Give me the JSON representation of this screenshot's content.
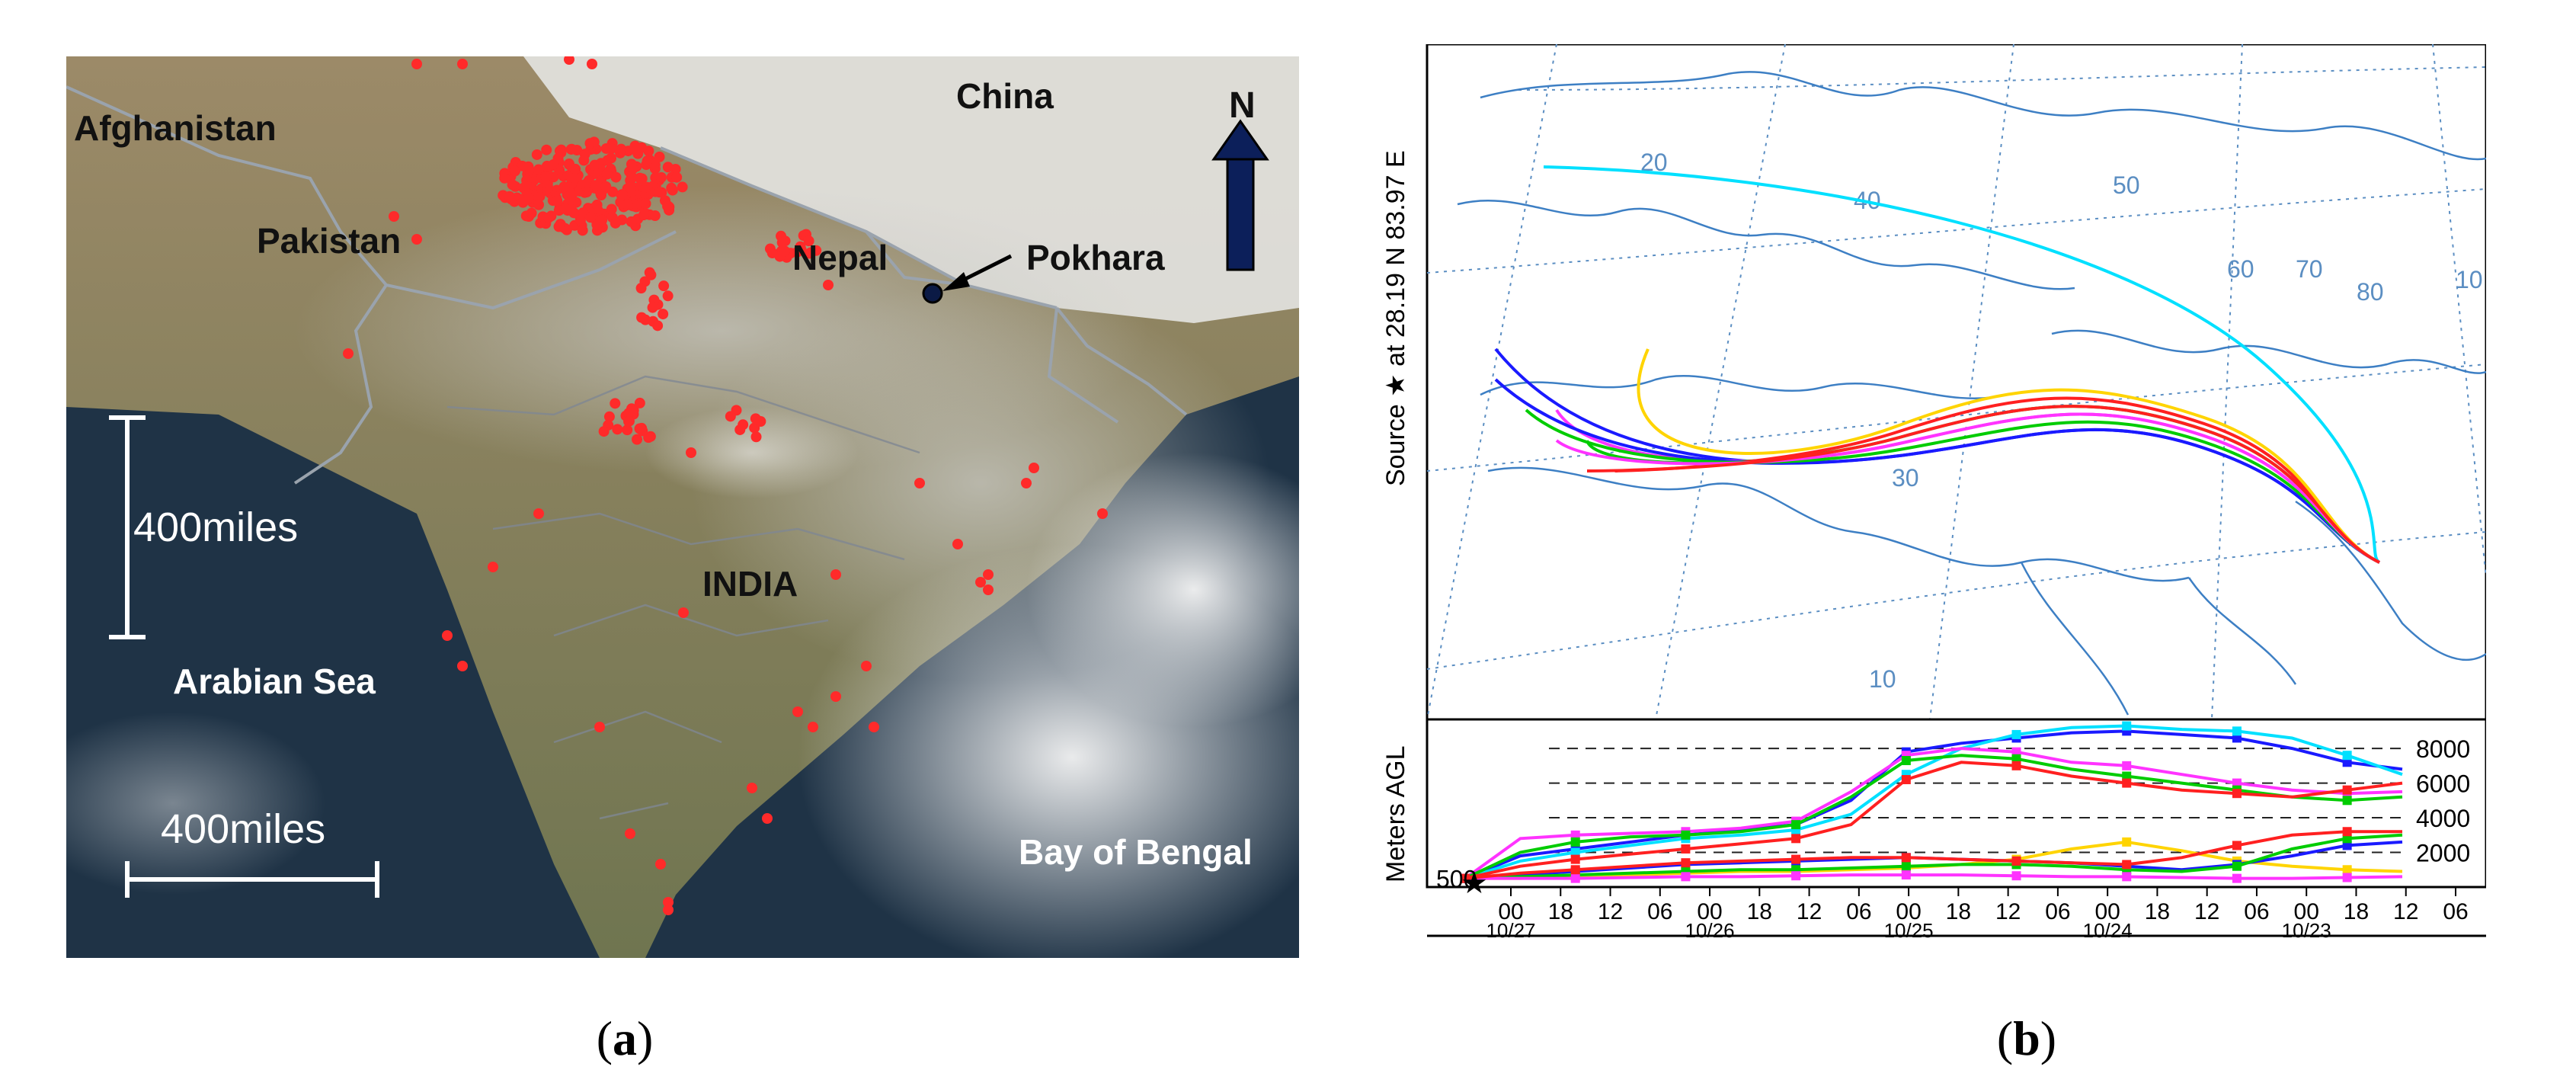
{
  "panel_a": {
    "caption_letter": "a",
    "labels": {
      "afghanistan": "Afghanistan",
      "china": "China",
      "pakistan": "Pakistan",
      "nepal": "Nepal",
      "pokhara": "Pokhara",
      "india": "INDIA",
      "arabian_sea": "Arabian Sea",
      "bay_of_bengal": "Bay of Bengal",
      "north": "N"
    },
    "scale_vertical": "400miles",
    "scale_horizontal": "400miles",
    "colors": {
      "fire": "#ff2a2a",
      "ocean": "#1f3346",
      "land": "#8a7c5f",
      "text_dark": "#111111",
      "text_light": "#ffffff"
    }
  },
  "panel_b": {
    "caption_letter": "b",
    "source_label": "Source ★  at   28.19 N   83.97 E",
    "lat_labels": [
      "10",
      "20",
      "30",
      "40",
      "50",
      "60",
      "70",
      "80",
      "10"
    ],
    "chart_data": {
      "type": "line",
      "ylabel": "Meters AGL",
      "y_ticks": [
        500,
        2000,
        4000,
        6000,
        8000
      ],
      "ylim": [
        0,
        9500
      ],
      "x_hours": [
        "00",
        "18",
        "12",
        "06",
        "00",
        "18",
        "12",
        "06",
        "00",
        "18",
        "12",
        "06",
        "00",
        "18",
        "12",
        "06",
        "00",
        "18",
        "12",
        "06"
      ],
      "x_dates": [
        "10/27",
        "10/26",
        "10/25",
        "10/24",
        "10/23"
      ],
      "x_range_hours_before_start": [
        0,
        102
      ],
      "series": [
        {
          "color": "#1a1aff",
          "x": [
            0,
            6,
            12,
            18,
            24,
            30,
            36,
            42,
            48,
            54,
            60,
            66,
            72,
            78,
            84,
            90,
            96,
            102
          ],
          "y": [
            500,
            1800,
            2200,
            2600,
            3000,
            3300,
            3600,
            5000,
            7800,
            8300,
            8600,
            8900,
            9000,
            8800,
            8600,
            8000,
            7200,
            6800
          ]
        },
        {
          "color": "#00e0ff",
          "x": [
            0,
            6,
            12,
            18,
            24,
            30,
            36,
            42,
            48,
            54,
            60,
            66,
            72,
            78,
            84,
            90,
            96,
            102
          ],
          "y": [
            500,
            1500,
            2000,
            2400,
            2800,
            3000,
            3300,
            4200,
            6500,
            8000,
            8800,
            9200,
            9300,
            9100,
            9000,
            8600,
            7600,
            6500
          ]
        },
        {
          "color": "#ff33ff",
          "x": [
            0,
            6,
            12,
            18,
            24,
            30,
            36,
            42,
            48,
            54,
            60,
            66,
            72,
            78,
            84,
            90,
            96,
            102
          ],
          "y": [
            500,
            2800,
            3000,
            3100,
            3200,
            3400,
            3800,
            5500,
            7600,
            8000,
            7800,
            7200,
            7000,
            6500,
            6000,
            5600,
            5400,
            5500
          ]
        },
        {
          "color": "#00cc00",
          "x": [
            0,
            6,
            12,
            18,
            24,
            30,
            36,
            42,
            48,
            54,
            60,
            66,
            72,
            78,
            84,
            90,
            96,
            102
          ],
          "y": [
            500,
            2000,
            2600,
            2900,
            3000,
            3200,
            3600,
            5200,
            7300,
            7600,
            7400,
            6800,
            6400,
            6000,
            5600,
            5200,
            5000,
            5200
          ]
        },
        {
          "color": "#ff2020",
          "x": [
            0,
            6,
            12,
            18,
            24,
            30,
            36,
            42,
            48,
            54,
            60,
            66,
            72,
            78,
            84,
            90,
            96,
            102
          ],
          "y": [
            500,
            1200,
            1600,
            1900,
            2200,
            2500,
            2800,
            3600,
            6200,
            7200,
            7000,
            6400,
            6000,
            5600,
            5400,
            5200,
            5600,
            6000
          ]
        },
        {
          "color": "#ffd400",
          "x": [
            0,
            6,
            12,
            18,
            24,
            30,
            36,
            42,
            48,
            54,
            60,
            66,
            72,
            78,
            84,
            90,
            96,
            102
          ],
          "y": [
            500,
            500,
            600,
            700,
            800,
            900,
            900,
            1000,
            1100,
            1300,
            1600,
            2200,
            2600,
            2100,
            1500,
            1200,
            1000,
            900
          ]
        },
        {
          "color": "#1a1aff",
          "x": [
            0,
            6,
            12,
            18,
            24,
            30,
            36,
            42,
            48,
            54,
            60,
            66,
            72,
            78,
            84,
            90,
            96,
            102
          ],
          "y": [
            500,
            700,
            900,
            1100,
            1300,
            1400,
            1500,
            1600,
            1700,
            1600,
            1500,
            1400,
            1200,
            1000,
            1300,
            1800,
            2400,
            2600
          ]
        },
        {
          "color": "#00cc00",
          "x": [
            0,
            6,
            12,
            18,
            24,
            30,
            36,
            42,
            48,
            54,
            60,
            66,
            72,
            78,
            84,
            90,
            96,
            102
          ],
          "y": [
            500,
            600,
            700,
            800,
            900,
            1000,
            1000,
            1100,
            1200,
            1300,
            1300,
            1200,
            1000,
            900,
            1200,
            2200,
            2800,
            3000
          ]
        },
        {
          "color": "#ff33ff",
          "x": [
            0,
            6,
            12,
            18,
            24,
            30,
            36,
            42,
            48,
            54,
            60,
            66,
            72,
            78,
            84,
            90,
            96,
            102
          ],
          "y": [
            500,
            500,
            500,
            550,
            600,
            600,
            650,
            700,
            700,
            700,
            650,
            600,
            600,
            550,
            500,
            500,
            550,
            600
          ]
        },
        {
          "color": "#ff2020",
          "x": [
            0,
            6,
            12,
            18,
            24,
            30,
            36,
            42,
            48,
            54,
            60,
            66,
            72,
            78,
            84,
            90,
            96,
            102
          ],
          "y": [
            500,
            800,
            1000,
            1200,
            1400,
            1500,
            1600,
            1700,
            1700,
            1600,
            1500,
            1400,
            1300,
            1700,
            2400,
            3000,
            3200,
            3200
          ]
        }
      ]
    }
  }
}
